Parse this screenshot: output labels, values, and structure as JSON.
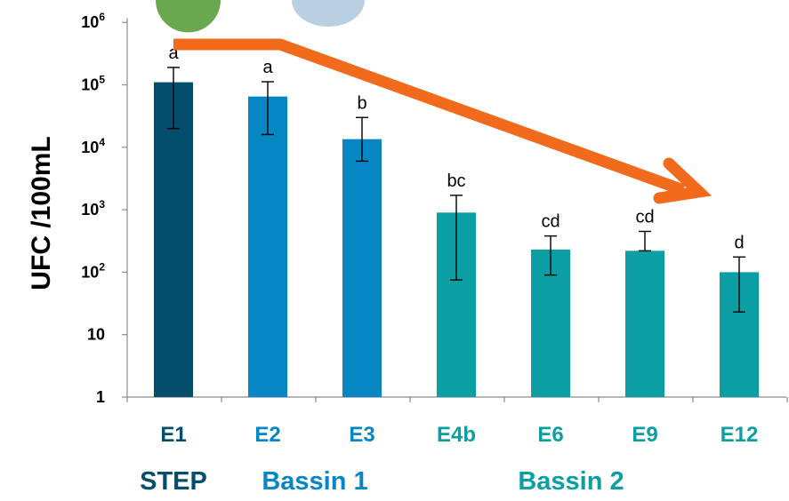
{
  "chart_data": {
    "type": "bar",
    "ylabel": "UFC /100mL",
    "yscale": "log",
    "ylim": [
      1,
      1000000
    ],
    "yticks": [
      {
        "value": 1,
        "base": "1",
        "exp": ""
      },
      {
        "value": 10,
        "base": "10",
        "exp": ""
      },
      {
        "value": 100,
        "base": "10",
        "exp": "2"
      },
      {
        "value": 1000,
        "base": "10",
        "exp": "3"
      },
      {
        "value": 10000,
        "base": "10",
        "exp": "4"
      },
      {
        "value": 100000,
        "base": "10",
        "exp": "5"
      },
      {
        "value": 1000000,
        "base": "10",
        "exp": "6"
      }
    ],
    "categories": [
      "E1",
      "E2",
      "E3",
      "E4b",
      "E6",
      "E9",
      "E12"
    ],
    "values": [
      110000,
      65000,
      13500,
      900,
      230,
      220,
      100
    ],
    "error_low": [
      20000,
      16000,
      6000,
      75,
      90,
      220,
      23
    ],
    "error_high": [
      190000,
      112000,
      30000,
      1700,
      380,
      450,
      175
    ],
    "significance": [
      "a",
      "a",
      "b",
      "bc",
      "cd",
      "cd",
      "d"
    ],
    "bar_colors": [
      "#024e6c",
      "#0686c2",
      "#0686c2",
      "#0b9ea2",
      "#0b9ea2",
      "#0b9ea2",
      "#0b9ea2"
    ],
    "groups": [
      {
        "label": "STEP",
        "color": "#024e6c"
      },
      {
        "label": "Bassin 1",
        "color": "#0686c2"
      },
      {
        "label": "Bassin 2",
        "color": "#0b9ea2"
      }
    ],
    "trend_arrow_color": "#f26b1d",
    "grid": false
  }
}
